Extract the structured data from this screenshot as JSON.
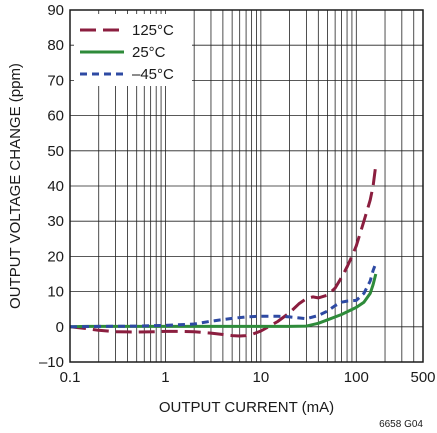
{
  "chart_data": {
    "type": "line",
    "xlabel": "OUTPUT CURRENT (mA)",
    "ylabel": "OUTPUT VOLTAGE CHANGE (ppm)",
    "xscale": "log",
    "xlim": [
      0.1,
      500
    ],
    "ylim": [
      -10,
      90
    ],
    "x_ticks": [
      "0.1",
      "1",
      "10",
      "100",
      "500"
    ],
    "y_ticks": [
      "–10",
      "0",
      "10",
      "20",
      "30",
      "40",
      "50",
      "60",
      "70",
      "80",
      "90"
    ],
    "grid": true,
    "legend_position": "top-left",
    "figure_id": "6658 G04",
    "series": [
      {
        "name": "125°C",
        "color": "#8b1e3f",
        "dash": "long-dash",
        "points": [
          [
            0.1,
            0
          ],
          [
            0.15,
            -0.5
          ],
          [
            0.2,
            -1
          ],
          [
            0.3,
            -1.4
          ],
          [
            0.5,
            -1.5
          ],
          [
            0.8,
            -1.4
          ],
          [
            1,
            -1.3
          ],
          [
            1.5,
            -1.3
          ],
          [
            2,
            -1.4
          ],
          [
            3,
            -1.8
          ],
          [
            4,
            -2.2
          ],
          [
            5,
            -2.5
          ],
          [
            6,
            -2.6
          ],
          [
            7,
            -2.5
          ],
          [
            8,
            -2.2
          ],
          [
            10,
            -1.2
          ],
          [
            12,
            0
          ],
          [
            15,
            1.5
          ],
          [
            20,
            4
          ],
          [
            25,
            6.5
          ],
          [
            30,
            8
          ],
          [
            35,
            8.5
          ],
          [
            40,
            8.2
          ],
          [
            50,
            9
          ],
          [
            60,
            11
          ],
          [
            70,
            14
          ],
          [
            80,
            17
          ],
          [
            90,
            20
          ],
          [
            100,
            23
          ],
          [
            120,
            30
          ],
          [
            140,
            36
          ],
          [
            150,
            40
          ],
          [
            160,
            46
          ]
        ]
      },
      {
        "name": "25°C",
        "color": "#2e8b3a",
        "dash": "solid",
        "points": [
          [
            0.1,
            0
          ],
          [
            0.15,
            0.1
          ],
          [
            0.3,
            0.1
          ],
          [
            1,
            0.1
          ],
          [
            3,
            0.1
          ],
          [
            10,
            0.1
          ],
          [
            20,
            0.1
          ],
          [
            30,
            0.2
          ],
          [
            40,
            1
          ],
          [
            50,
            2
          ],
          [
            70,
            3.5
          ],
          [
            100,
            5.5
          ],
          [
            120,
            7
          ],
          [
            140,
            9.5
          ],
          [
            150,
            12
          ],
          [
            160,
            15
          ]
        ]
      },
      {
        "name": "–45°C",
        "color": "#2e4aa3",
        "dash": "short-dash",
        "points": [
          [
            0.1,
            0
          ],
          [
            0.2,
            0.1
          ],
          [
            0.5,
            0.2
          ],
          [
            1,
            0.4
          ],
          [
            2,
            0.8
          ],
          [
            3,
            1.6
          ],
          [
            5,
            2.4
          ],
          [
            7,
            2.8
          ],
          [
            10,
            3
          ],
          [
            15,
            3
          ],
          [
            20,
            2.8
          ],
          [
            30,
            2.3
          ],
          [
            40,
            3.2
          ],
          [
            50,
            4.5
          ],
          [
            60,
            6
          ],
          [
            70,
            7
          ],
          [
            80,
            7.3
          ],
          [
            100,
            7.5
          ],
          [
            120,
            9.5
          ],
          [
            140,
            13
          ],
          [
            150,
            16
          ],
          [
            160,
            18
          ]
        ]
      }
    ]
  }
}
